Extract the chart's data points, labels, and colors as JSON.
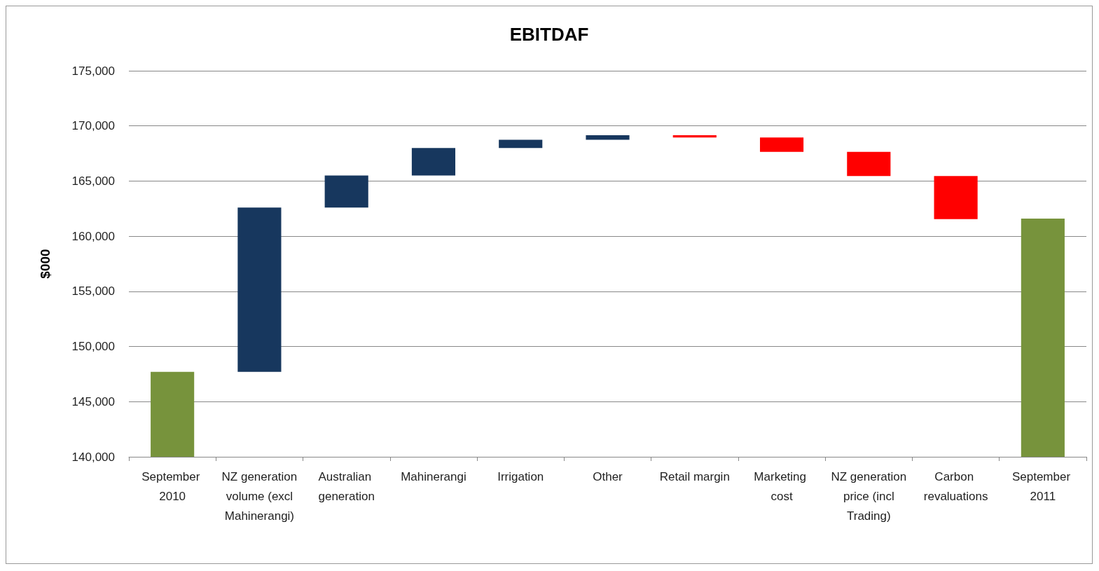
{
  "chart_data": {
    "type": "bar",
    "title": "EBITDAF",
    "ylabel": "$000",
    "categories": [
      "September 2010",
      "NZ generation volume (excl Mahinerangi)",
      "Australian generation",
      "Mahinerangi",
      "Irrigation",
      "Other",
      "Retail margin",
      "Marketing cost",
      "NZ generation price (incl Trading)",
      "Carbon revaluations",
      "September 2011"
    ],
    "values": [
      147700,
      14900,
      2900,
      2500,
      750,
      400,
      -200,
      -1300,
      -2200,
      -3900,
      161600
    ],
    "base": [
      null,
      147700,
      162600,
      165500,
      168000,
      168750,
      169150,
      168950,
      167650,
      165450,
      null
    ],
    "colors": [
      "#77933c",
      "#17375e",
      "#17375e",
      "#17375e",
      "#17375e",
      "#17375e",
      "#ff0000",
      "#ff0000",
      "#ff0000",
      "#ff0000",
      "#77933c"
    ],
    "ylim": [
      140000,
      175000
    ],
    "yticks": [
      {
        "value": 140000,
        "label": "140,000"
      },
      {
        "value": 145000,
        "label": "145,000"
      },
      {
        "value": 150000,
        "label": "150,000"
      },
      {
        "value": 155000,
        "label": "155,000"
      },
      {
        "value": 160000,
        "label": "160,000"
      },
      {
        "value": 165000,
        "label": "165,000"
      },
      {
        "value": 170000,
        "label": "170,000"
      },
      {
        "value": 175000,
        "label": "175,000"
      }
    ],
    "grid": "y"
  }
}
